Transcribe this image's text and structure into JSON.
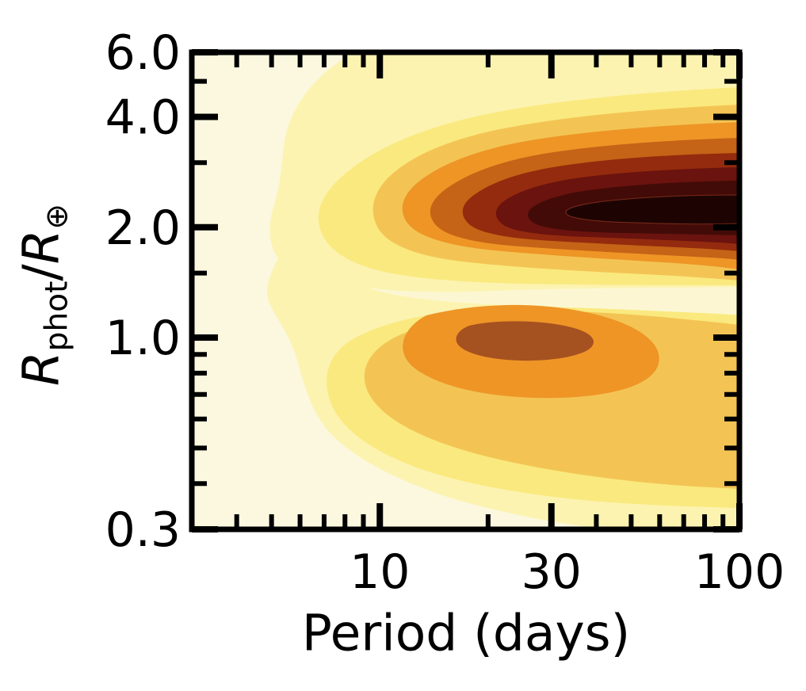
{
  "figure": {
    "background": "#ffffff",
    "frame_color": "#000000",
    "tick_color": "#000000"
  },
  "chart_data": {
    "type": "heatmap",
    "variant": "filled-contour-density",
    "title": "",
    "xlabel": "Period (days)",
    "ylabel_plain": "R_phot/R_earth",
    "ylabel_parts": {
      "r1": "R",
      "sub1": "phot",
      "slash": "/",
      "r2": "R",
      "sub2": "⊕"
    },
    "x_scale": "log",
    "y_scale": "log",
    "x_range": [
      3,
      100
    ],
    "y_range": [
      0.3,
      6.0
    ],
    "grid": false,
    "legend": false,
    "x_major_ticks": [
      10,
      30,
      100
    ],
    "x_major_tick_labels": [
      "10",
      "30",
      "100"
    ],
    "x_minor_ticks": [
      4,
      5,
      6,
      7,
      8,
      9,
      20,
      40,
      50,
      60,
      70,
      80,
      90
    ],
    "y_major_ticks": [
      6.0,
      4.0,
      2.0,
      1.0,
      0.3
    ],
    "y_major_tick_labels": [
      "6.0",
      "4.0",
      "2.0",
      "1.0",
      "0.3"
    ],
    "y_minor_ticks": [
      5.0,
      3.0,
      1.5,
      0.9,
      0.8,
      0.7,
      0.6,
      0.5,
      0.4
    ],
    "colormap_description": "pale cream-yellow through gold, orange, red-brown to near-black (afmhot reversed style), increasing planet occurrence density",
    "levels": [
      {
        "id": "L0",
        "name": "background-lowest-density",
        "color": "#FBF8DF"
      },
      {
        "id": "L1",
        "name": "pale-yellow",
        "color": "#FCF3B1"
      },
      {
        "id": "L2",
        "name": "yellow",
        "color": "#FAE97E"
      },
      {
        "id": "L3",
        "name": "gold",
        "color": "#F3C454"
      },
      {
        "id": "L4",
        "name": "orange",
        "color": "#EE9526"
      },
      {
        "id": "L5",
        "name": "burnt-orange",
        "color": "#C56317"
      },
      {
        "id": "L6",
        "name": "red-brown",
        "color": "#942B0E"
      },
      {
        "id": "L7",
        "name": "maroon",
        "color": "#6B130E"
      },
      {
        "id": "L8",
        "name": "dark-maroon",
        "color": "#420B08"
      },
      {
        "id": "L9",
        "name": "near-black-peak",
        "color": "#1D0403"
      },
      {
        "id": "valley",
        "name": "radius-valley-low-density-wedge",
        "color": "#FCF7D2"
      },
      {
        "id": "peak2core",
        "name": "secondary-peak-core-sienna",
        "color": "#A55120"
      }
    ],
    "density_features": [
      {
        "name": "sub-Neptune peak",
        "period_days": 55,
        "radius_earth": 2.8,
        "relative_density": 1.0,
        "extent": "dark core spans P ≈ 25–100 d, R ≈ 2.4–3.2"
      },
      {
        "name": "super-Earth peak",
        "period_days": 22,
        "radius_earth": 1.05,
        "relative_density": 0.5,
        "extent": "orange lobe spans P ≈ 12–60 d, R ≈ 0.85–1.35"
      },
      {
        "name": "radius valley",
        "period_days": "10–100",
        "radius_earth": 1.7,
        "relative_density": 0.05,
        "extent": "low-density channel separating the two peaks, widening toward long periods"
      }
    ]
  }
}
